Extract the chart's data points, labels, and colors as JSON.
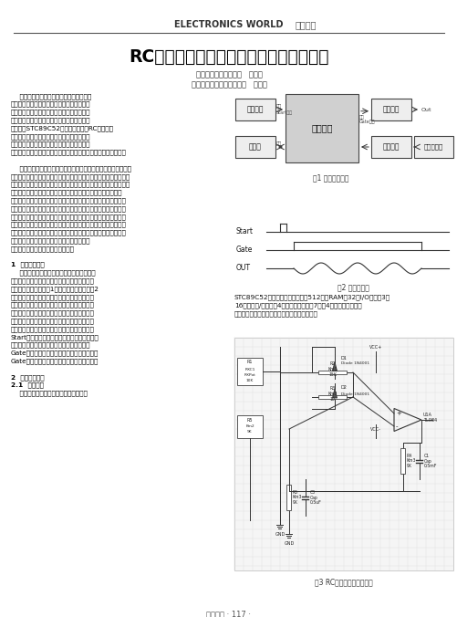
{
  "title": "RC桥式正弦波振荡电路的信号模拟器设计",
  "header_latin": "ELECTRONICS WORLD",
  "header_chinese": "技术交流",
  "authors_line1": "长江大学电子信息学院   赵展锫",
  "authors_line2": "沈阳城市学院建筑工程学院   饶林南",
  "bg_color": "#ffffff",
  "footer_text": "电子世界 · 117 ·",
  "col1_lines": [
    "    为解决水下、井下数据测量分析困难的问",
    "题，方便测井设备维修和现场电子线路检测并",
    "提高设备对信号采集的准确性，设计出了一款",
    "简单并实用的信号模拟器。该模拟器的核心器",
    "件是选用STC89C52单片机，并控制RC桥式正弦",
    "振荡电路的振动频率来产生可控时间段的正弦",
    "模拟信号实验结果可以看出，他能够模拟并下",
    "仪器产生的声下信号，对油田测井仪器检测具有较高的实用价值。",
    "",
    "    随着电子信息产业的发展，各种电子系统中对于正弦信号的应用",
    "越来越多，因而频繁波的应用范围也越来越广。其中，正弦信号作为",
    "工程实践中应用最多的电信号之一，在系统测量和排除错误中起着举",
    "足轻重的作用。在很多的测井仪器设备的模拟工作过程中，需要",
    "给检能额一个正弦激发信号，但激发信号的时间会根据不同实际情",
    "况而变化，很多信号模拟器所发出的信号都是持续的而且无法控制",
    "输出时间。本文设计的信号模拟器，不仅操作简易成本低，而且可",
    "以控制正弦信号输出的时间，当模拟器接收到启动脉冲信号时，就",
    "以会延时一段时间，再向外界发送一段时间的正弦信号。在接收脉",
    "冲信号前，可以通过串口向主控模块下达指令",
    "以而对这两段时间进行自主的控制。",
    "",
    "1  总体方案设计",
    "    本次设计中的硬件部分主要包含主控模块、",
    "信号源模块、放大电路模块、驱动电路模块等。",
    "系统整体设计框图如图1所示。信号时序图如图2",
    "所示。信号源模块用于产生模拟正弦信号，然后",
    "经放大电路进行放大处理，驱动电路中包含续电",
    "器模块。默认状态下，驱动电路中的继电器处于",
    "断开状态，信号无法向外界输出。当需要向外界",
    "输送正弦信号时，主控模块接收参检测到外界的",
    "Start脉冲信号，产生中断，此时会有一段可控",
    "的延时时间，然后再输出一定时间的门控信号",
    "Gate，用来导通继电器。进而可以向外界输出",
    "Gate信号时间段的大小的正弦模拟信号信号。",
    "",
    "2  系统硬件设计",
    "2.1  主控模块",
    "    根据设计要求，本次设计的主控模块是"
  ],
  "col2_text1": "STC89C52单片机，该单片机具有512字节RAM，32位I/O口线，3个",
  "col2_text2": "16位定时器/计数器，4个外部中断，一个7向量4级中断结构，全双",
  "col2_text3": "工串行口等优点，可以完全满足上述实验功能。",
  "fig1_caption": "图1 总体设计框图",
  "fig2_caption": "图2 信号时序图",
  "fig3_caption": "图3 RC桥式正弦波振荡电路"
}
